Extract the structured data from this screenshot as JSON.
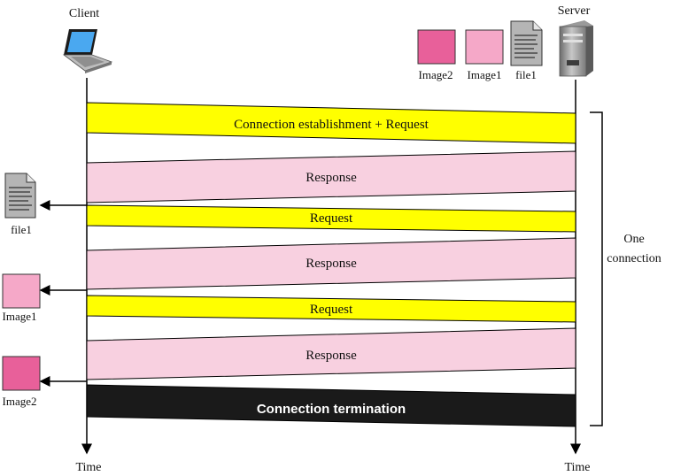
{
  "client": {
    "label": "Client",
    "time_label": "Time"
  },
  "server": {
    "label": "Server",
    "time_label": "Time"
  },
  "server_files": [
    {
      "label": "Image2",
      "color": "#e8609a"
    },
    {
      "label": "Image1",
      "color": "#f5a8c8"
    },
    {
      "label": "file1",
      "icon": "document-icon"
    }
  ],
  "messages": [
    {
      "label": "Connection establishment + Request",
      "color": "#ffff00"
    },
    {
      "label": "Response",
      "color": "#f8d0e0"
    },
    {
      "label": "Request",
      "color": "#ffff00"
    },
    {
      "label": "Response",
      "color": "#f8d0e0"
    },
    {
      "label": "Request",
      "color": "#ffff00"
    },
    {
      "label": "Response",
      "color": "#f8d0e0"
    },
    {
      "label": "Connection termination",
      "color": "#1a1a1a"
    }
  ],
  "client_received": [
    {
      "label": "file1",
      "icon": "document-icon"
    },
    {
      "label": "Image1",
      "color": "#f5a8c8"
    },
    {
      "label": "Image2",
      "color": "#e8609a"
    }
  ],
  "connection_note": {
    "line1": "One",
    "line2": "connection"
  }
}
